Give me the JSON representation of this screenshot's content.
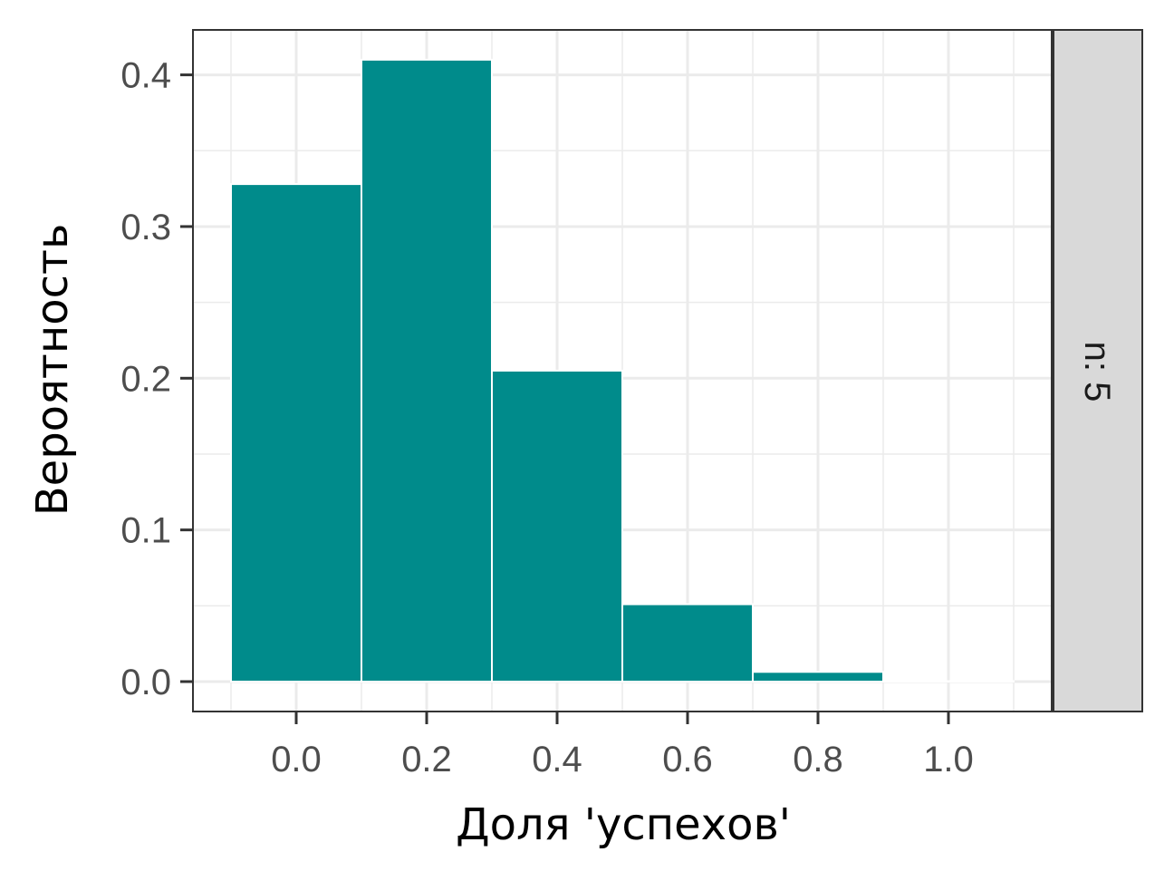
{
  "chart_data": {
    "type": "bar",
    "title": "",
    "xlabel": "Доля 'успехов'",
    "ylabel": "Вероятность",
    "x": [
      0.0,
      0.2,
      0.4,
      0.6,
      0.8,
      1.0
    ],
    "values": [
      0.328,
      0.41,
      0.205,
      0.051,
      0.0064,
      0.0003
    ],
    "bar_width": 0.2,
    "xlim": [
      -0.1,
      1.1
    ],
    "ylim": [
      0,
      0.4
    ],
    "x_ticks": [
      {
        "value": 0.0,
        "label": "0.0"
      },
      {
        "value": 0.2,
        "label": "0.2"
      },
      {
        "value": 0.4,
        "label": "0.4"
      },
      {
        "value": 0.6,
        "label": "0.6"
      },
      {
        "value": 0.8,
        "label": "0.8"
      },
      {
        "value": 1.0,
        "label": "1.0"
      }
    ],
    "y_ticks": [
      {
        "value": 0.0,
        "label": "0.0"
      },
      {
        "value": 0.1,
        "label": "0.1"
      },
      {
        "value": 0.2,
        "label": "0.2"
      },
      {
        "value": 0.3,
        "label": "0.3"
      },
      {
        "value": 0.4,
        "label": "0.4"
      }
    ],
    "grid": true,
    "facet_label": "n: 5",
    "colors": {
      "bar_fill": "#008B8B",
      "bar_edge": "#ffffff",
      "panel_bg": "#ffffff",
      "grid": "#ebebeb",
      "panel_border": "#333333",
      "strip_bg": "#d9d9d9"
    }
  }
}
